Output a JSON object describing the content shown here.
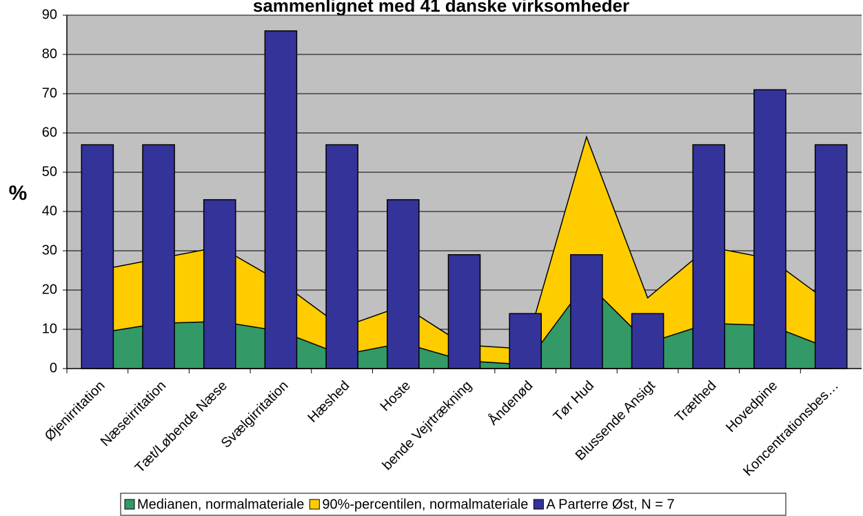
{
  "chart_data": {
    "type": "combo",
    "title": "sammenlignet med 41 danske virksomheder",
    "ylabel": "%",
    "categories": [
      "Øjenirritation",
      "Næseirritation",
      "Tæt/Løbende Næse",
      "Svælgirritation",
      "Hæshed",
      "Hoste",
      "bende Vejrtrækning",
      "Åndenød",
      "Tør Hud",
      "Blussende Ansigt",
      "Træthed",
      "Hovedpine",
      "Koncentrationsbes…"
    ],
    "series": [
      {
        "name": "90%-percentilen, normalmateriale",
        "type": "area",
        "color": "#ffcc00",
        "values": [
          25,
          28,
          31,
          22,
          10.5,
          16,
          6,
          5,
          59,
          18,
          31,
          28,
          16.5
        ]
      },
      {
        "name": "Medianen, normalmateriale",
        "type": "area",
        "color": "#339966",
        "values": [
          9,
          11.5,
          12,
          9.5,
          3.5,
          6.5,
          2,
          1,
          22,
          6.5,
          11.5,
          11,
          5
        ]
      },
      {
        "name": "A Parterre Øst, N = 7",
        "type": "bar",
        "color": "#333399",
        "values": [
          57,
          57,
          43,
          86,
          57,
          43,
          29,
          14,
          29,
          14,
          57,
          71,
          57
        ]
      }
    ],
    "legend_order": [
      1,
      0,
      2
    ],
    "ylim": [
      0,
      90
    ],
    "yticks": [
      0,
      10,
      20,
      30,
      40,
      50,
      60,
      70,
      80,
      90
    ],
    "grid": true,
    "plot_background": "#c0c0c0"
  }
}
